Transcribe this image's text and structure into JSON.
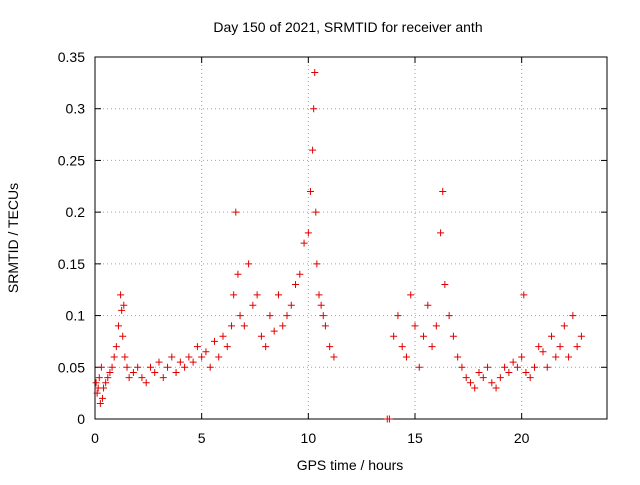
{
  "chart_data": {
    "type": "scatter",
    "title": "Day 150 of 2021, SRMTID for receiver anth",
    "xlabel": "GPS time / hours",
    "ylabel": "SRMTID / TECUs",
    "xlim": [
      0,
      24
    ],
    "ylim": [
      0,
      0.35
    ],
    "xticks": [
      0,
      5,
      10,
      15,
      20
    ],
    "yticks": [
      0,
      0.05,
      0.1,
      0.15,
      0.2,
      0.25,
      0.3,
      0.35
    ],
    "xtick_labels": [
      "0",
      "5",
      "10",
      "15",
      "20"
    ],
    "ytick_labels": [
      "0",
      "0.05",
      "0.1",
      "0.15",
      "0.2",
      "0.25",
      "0.3",
      "0.35"
    ],
    "grid": true,
    "marker": "+",
    "color": "#e00000",
    "points_x": [
      0.05,
      0.1,
      0.15,
      0.2,
      0.25,
      0.3,
      0.35,
      0.4,
      0.5,
      0.6,
      0.7,
      0.8,
      0.9,
      1.0,
      1.1,
      1.2,
      1.25,
      1.3,
      1.35,
      1.4,
      1.5,
      1.6,
      1.8,
      2.0,
      2.2,
      2.4,
      2.6,
      2.8,
      3.0,
      3.2,
      3.4,
      3.6,
      3.8,
      4.0,
      4.2,
      4.4,
      4.6,
      4.8,
      5.0,
      5.2,
      5.4,
      5.6,
      5.8,
      6.0,
      6.2,
      6.4,
      6.5,
      6.6,
      6.7,
      6.8,
      7.0,
      7.2,
      7.4,
      7.6,
      7.8,
      8.0,
      8.2,
      8.4,
      8.6,
      8.8,
      9.0,
      9.2,
      9.4,
      9.6,
      9.8,
      10.0,
      10.1,
      10.2,
      10.25,
      10.3,
      10.35,
      10.4,
      10.5,
      10.6,
      10.7,
      10.8,
      11.0,
      11.2,
      13.7,
      13.8,
      14.0,
      14.2,
      14.4,
      14.6,
      14.8,
      15.0,
      15.2,
      15.4,
      15.6,
      15.8,
      16.0,
      16.2,
      16.3,
      16.4,
      16.6,
      16.8,
      17.0,
      17.2,
      17.4,
      17.6,
      17.8,
      18.0,
      18.2,
      18.4,
      18.6,
      18.8,
      19.0,
      19.2,
      19.4,
      19.6,
      19.8,
      20.0,
      20.1,
      20.2,
      20.4,
      20.6,
      20.8,
      21.0,
      21.2,
      21.4,
      21.6,
      21.8,
      22.0,
      22.2,
      22.4,
      22.6,
      22.8
    ],
    "points_y": [
      0.035,
      0.025,
      0.03,
      0.04,
      0.015,
      0.05,
      0.02,
      0.03,
      0.035,
      0.04,
      0.045,
      0.05,
      0.06,
      0.07,
      0.09,
      0.12,
      0.105,
      0.08,
      0.11,
      0.06,
      0.05,
      0.04,
      0.045,
      0.05,
      0.04,
      0.035,
      0.05,
      0.045,
      0.055,
      0.04,
      0.05,
      0.06,
      0.045,
      0.055,
      0.05,
      0.06,
      0.055,
      0.07,
      0.06,
      0.065,
      0.05,
      0.075,
      0.06,
      0.08,
      0.07,
      0.09,
      0.12,
      0.2,
      0.14,
      0.1,
      0.09,
      0.15,
      0.11,
      0.12,
      0.08,
      0.07,
      0.1,
      0.085,
      0.12,
      0.09,
      0.1,
      0.11,
      0.13,
      0.14,
      0.17,
      0.18,
      0.22,
      0.26,
      0.3,
      0.335,
      0.2,
      0.15,
      0.12,
      0.11,
      0.1,
      0.09,
      0.07,
      0.06,
      0.0,
      0.0,
      0.08,
      0.1,
      0.07,
      0.06,
      0.12,
      0.09,
      0.05,
      0.08,
      0.11,
      0.07,
      0.09,
      0.18,
      0.22,
      0.13,
      0.1,
      0.08,
      0.06,
      0.05,
      0.04,
      0.035,
      0.03,
      0.045,
      0.04,
      0.05,
      0.035,
      0.03,
      0.04,
      0.05,
      0.045,
      0.055,
      0.05,
      0.06,
      0.12,
      0.045,
      0.04,
      0.05,
      0.07,
      0.065,
      0.05,
      0.08,
      0.06,
      0.07,
      0.09,
      0.06,
      0.1,
      0.07,
      0.08
    ]
  }
}
